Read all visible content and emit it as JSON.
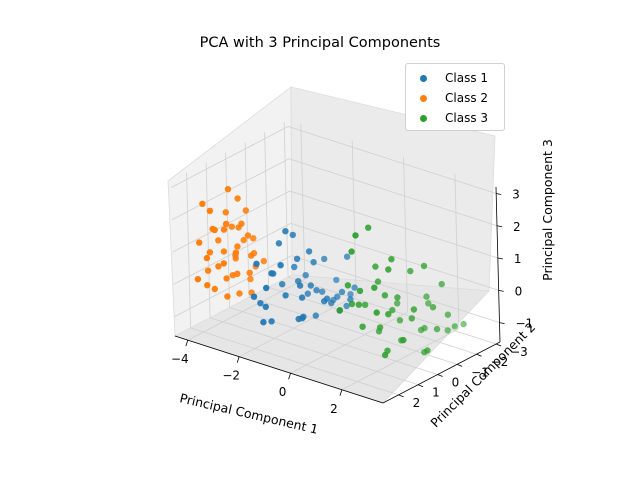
{
  "chart_data": {
    "type": "scatter",
    "title": "PCA with 3 Principal Components",
    "xlabel": "Principal Component 1",
    "ylabel": "Principal Component 2",
    "zlabel": "Principal Component 3",
    "xticks": [
      "−4",
      "−2",
      "0",
      "2"
    ],
    "yticks": [
      "−3",
      "−2",
      "−1",
      "0",
      "1",
      "2"
    ],
    "zticks": [
      "−1",
      "0",
      "1",
      "2",
      "3"
    ],
    "xlim": [
      -4.5,
      3.6
    ],
    "ylim": [
      -3.2,
      2.8
    ],
    "zlim": [
      -1.6,
      3.2
    ],
    "grid": true,
    "legend_position": "top-right",
    "series": [
      {
        "name": "Class 1",
        "color": "#1f77b4",
        "points": [
          [
            -2.4,
            -0.8,
            -0.5
          ],
          [
            -2.0,
            -1.2,
            -0.8
          ],
          [
            -1.6,
            -0.4,
            -0.3
          ],
          [
            -2.6,
            0.2,
            0.0
          ],
          [
            -1.9,
            0.5,
            -0.4
          ],
          [
            -1.2,
            -0.9,
            -0.9
          ],
          [
            -2.8,
            -0.5,
            -0.6
          ],
          [
            -2.2,
            0.8,
            0.3
          ],
          [
            -1.5,
            -1.6,
            -1.0
          ],
          [
            -2.5,
            -1.4,
            -1.1
          ],
          [
            -1.8,
            0.0,
            0.6
          ],
          [
            -2.1,
            -0.2,
            1.2
          ],
          [
            -0.9,
            -0.3,
            -0.5
          ],
          [
            -2.7,
            -1.0,
            -0.2
          ],
          [
            -1.4,
            0.4,
            0.0
          ],
          [
            -2.3,
            1.0,
            -0.7
          ],
          [
            -1.0,
            -1.2,
            -0.6
          ],
          [
            -2.9,
            0.5,
            -0.9
          ],
          [
            -1.7,
            -0.7,
            0.3
          ],
          [
            -2.0,
            0.3,
            1.5
          ],
          [
            -1.3,
            -1.8,
            -1.3
          ],
          [
            -2.4,
            -2.0,
            -1.2
          ],
          [
            -1.1,
            0.7,
            -0.2
          ],
          [
            -1.9,
            -1.5,
            0.1
          ],
          [
            -2.6,
            1.2,
            -0.4
          ],
          [
            -0.8,
            -0.8,
            -1.0
          ],
          [
            -1.6,
            1.1,
            0.8
          ],
          [
            -2.2,
            -2.3,
            -1.5
          ],
          [
            -1.5,
            0.2,
            -1.1
          ],
          [
            -2.0,
            -0.5,
            -1.4
          ],
          [
            -1.2,
            -2.1,
            -0.8
          ],
          [
            -2.8,
            -1.7,
            -0.7
          ],
          [
            -0.7,
            0.1,
            -0.4
          ],
          [
            -1.8,
            1.6,
            0.2
          ],
          [
            -2.5,
            0.0,
            0.9
          ],
          [
            -1.0,
            -1.5,
            0.4
          ],
          [
            -2.3,
            -2.6,
            -1.0
          ],
          [
            -1.6,
            -2.4,
            -1.2
          ],
          [
            -0.6,
            -1.1,
            -0.7
          ],
          [
            -2.1,
            1.4,
            -1.0
          ],
          [
            -1.4,
            -0.1,
            0.9
          ],
          [
            -2.7,
            0.9,
            0.5
          ],
          [
            -1.1,
            0.9,
            -0.8
          ],
          [
            -1.9,
            -1.0,
            -1.5
          ],
          [
            -2.4,
            0.6,
            -1.3
          ]
        ]
      },
      {
        "name": "Class 2",
        "color": "#ff7f0e",
        "points": [
          [
            -3.6,
            0.8,
            0.5
          ],
          [
            -3.2,
            1.2,
            1.0
          ],
          [
            -3.9,
            0.4,
            0.2
          ],
          [
            -3.4,
            1.6,
            1.6
          ],
          [
            -2.9,
            0.9,
            0.7
          ],
          [
            -4.1,
            1.0,
            0.9
          ],
          [
            -3.7,
            1.9,
            2.2
          ],
          [
            -3.0,
            1.5,
            0.3
          ],
          [
            -3.5,
            0.2,
            -0.4
          ],
          [
            -4.0,
            1.4,
            1.4
          ],
          [
            -3.3,
            2.2,
            1.8
          ],
          [
            -2.8,
            1.8,
            1.1
          ],
          [
            -3.8,
            0.7,
            -0.2
          ],
          [
            -3.1,
            0.5,
            0.6
          ],
          [
            -4.2,
            0.6,
            0.4
          ],
          [
            -3.6,
            2.4,
            2.6
          ],
          [
            -3.0,
            2.0,
            2.0
          ],
          [
            -3.9,
            1.7,
            0.8
          ],
          [
            -3.4,
            0.9,
            -0.6
          ],
          [
            -2.7,
            1.3,
            1.5
          ],
          [
            -3.7,
            1.1,
            1.9
          ],
          [
            -3.2,
            0.3,
            0.1
          ],
          [
            -4.0,
            2.1,
            1.2
          ],
          [
            -3.5,
            1.4,
            0.0
          ],
          [
            -2.9,
            2.3,
            0.9
          ],
          [
            -3.8,
            0.1,
            0.7
          ],
          [
            -3.3,
            1.0,
            2.4
          ],
          [
            -3.1,
            1.9,
            -0.3
          ],
          [
            -4.3,
            1.3,
            0.0
          ],
          [
            -3.6,
            0.6,
            1.3
          ],
          [
            -3.0,
            0.8,
            -0.5
          ],
          [
            -3.4,
            2.5,
            1.0
          ],
          [
            -3.9,
            1.5,
            -0.4
          ],
          [
            -2.8,
            0.4,
            0.4
          ],
          [
            -3.5,
            1.8,
            0.5
          ],
          [
            -3.2,
            1.6,
            2.9
          ],
          [
            -4.1,
            0.3,
            1.1
          ],
          [
            -3.7,
            2.6,
            0.3
          ],
          [
            -3.1,
            1.1,
            1.7
          ],
          [
            -3.5,
            0.0,
            0.8
          ],
          [
            -3.8,
            2.0,
            -0.1
          ],
          [
            -3.3,
            0.6,
            1.9
          ],
          [
            -2.9,
            1.0,
            0.2
          ]
        ]
      },
      {
        "name": "Class 3",
        "color": "#2ca02c",
        "points": [
          [
            2.0,
            0.5,
            0.6
          ],
          [
            2.5,
            1.0,
            0.3
          ],
          [
            1.5,
            -0.5,
            -0.3
          ],
          [
            2.8,
            0.2,
            0.0
          ],
          [
            1.8,
            1.5,
            1.0
          ],
          [
            3.0,
            -0.8,
            -0.6
          ],
          [
            2.2,
            -1.2,
            -0.9
          ],
          [
            1.2,
            0.8,
            0.2
          ],
          [
            2.6,
            1.8,
            1.4
          ],
          [
            3.2,
            0.6,
            0.5
          ],
          [
            1.6,
            -1.8,
            -1.3
          ],
          [
            2.4,
            -0.3,
            1.2
          ],
          [
            0.9,
            0.1,
            -0.1
          ],
          [
            2.9,
            -1.5,
            -0.4
          ],
          [
            1.9,
            2.0,
            2.4
          ],
          [
            3.3,
            1.3,
            -0.2
          ],
          [
            1.4,
            -1.0,
            -0.8
          ],
          [
            2.7,
            -2.1,
            -1.0
          ],
          [
            1.1,
            1.2,
            0.9
          ],
          [
            2.1,
            -2.5,
            -1.4
          ],
          [
            3.1,
            -0.1,
            1.6
          ],
          [
            1.7,
            0.4,
            -0.5
          ],
          [
            2.3,
            2.3,
            3.1
          ],
          [
            0.8,
            -0.7,
            -1.2
          ],
          [
            2.6,
            0.9,
            2.0
          ],
          [
            1.3,
            1.9,
            0.4
          ],
          [
            3.0,
            -1.1,
            0.7
          ],
          [
            2.0,
            -1.6,
            -0.1
          ],
          [
            1.5,
            0.3,
            1.3
          ],
          [
            2.8,
            1.6,
            -0.7
          ],
          [
            1.0,
            -1.4,
            -0.5
          ],
          [
            2.5,
            -2.8,
            -1.2
          ],
          [
            1.8,
            1.0,
            2.8
          ],
          [
            3.3,
            0.1,
            -0.9
          ],
          [
            1.2,
            -0.2,
            0.6
          ],
          [
            2.2,
            0.7,
            -1.0
          ],
          [
            2.9,
            2.1,
            0.8
          ],
          [
            1.6,
            -2.2,
            -0.6
          ],
          [
            2.4,
            -0.9,
            -1.5
          ],
          [
            0.7,
            0.5,
            0.0
          ],
          [
            3.1,
            -0.5,
            0.2
          ],
          [
            1.9,
            -0.4,
            -1.1
          ],
          [
            2.7,
            1.2,
            1.8
          ],
          [
            1.4,
            0.9,
            -0.4
          ],
          [
            2.1,
            0.0,
            0.4
          ]
        ]
      }
    ]
  }
}
